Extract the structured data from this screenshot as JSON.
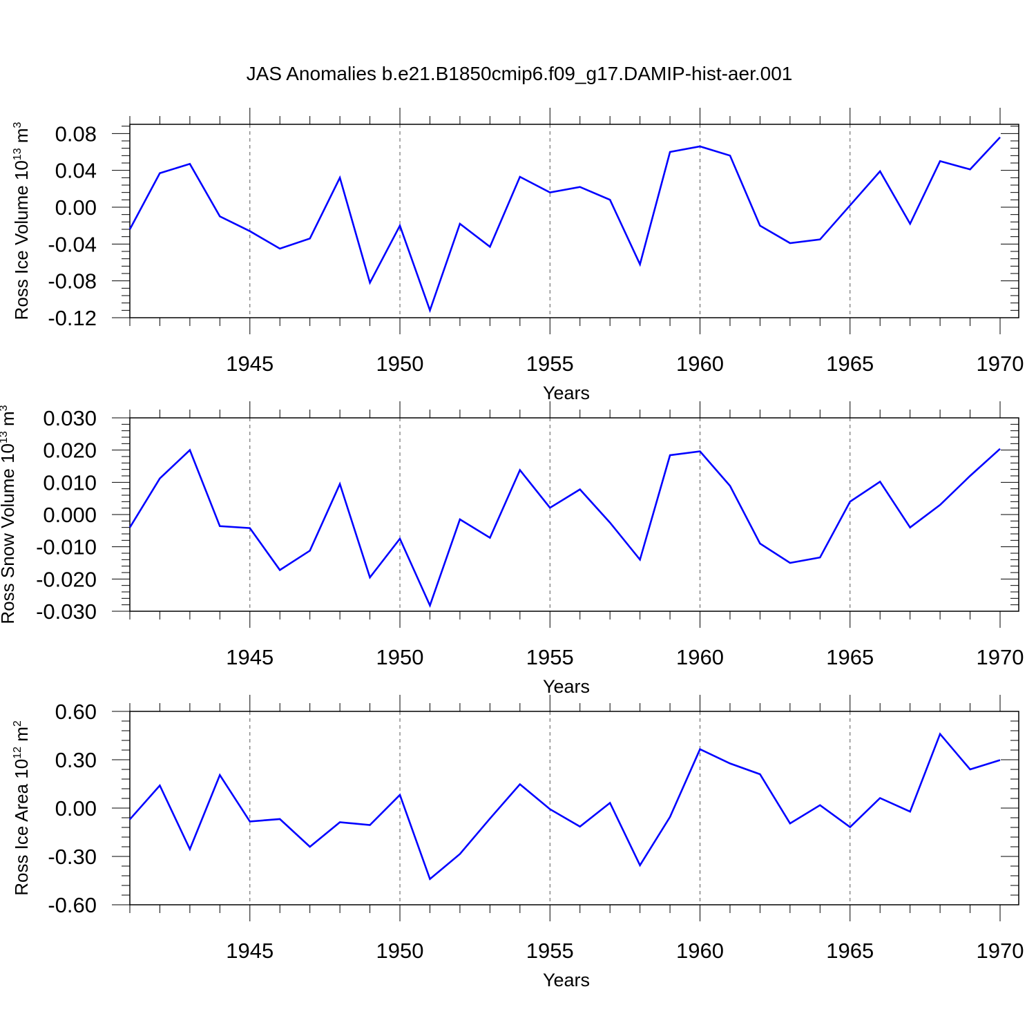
{
  "title": "JAS Anomalies b.e21.B1850cmip6.f09_g17.DAMIP-hist-aer.001",
  "line_color": "#0000ff",
  "chart_data": [
    {
      "type": "line",
      "title": "JAS Anomalies b.e21.B1850cmip6.f09_g17.DAMIP-hist-aer.001",
      "xlabel": "Years",
      "ylabel": "Ross Ice Volume 10",
      "ylabel_exp": "13",
      "ylabel_unit": " m",
      "ylabel_unit_exp": "3",
      "xlim": [
        1941,
        1970
      ],
      "ylim": [
        -0.12,
        0.09
      ],
      "xticks": [
        1945,
        1950,
        1955,
        1960,
        1965,
        1970
      ],
      "yticks": [
        -0.12,
        -0.08,
        -0.04,
        0.0,
        0.04,
        0.08
      ],
      "ytick_labels": [
        "-0.12",
        "-0.08",
        "-0.04",
        "0.00",
        "0.04",
        "0.08"
      ],
      "x": [
        1941,
        1942,
        1943,
        1944,
        1945,
        1946,
        1947,
        1948,
        1949,
        1950,
        1951,
        1952,
        1953,
        1954,
        1955,
        1956,
        1957,
        1958,
        1959,
        1960,
        1961,
        1962,
        1963,
        1964,
        1965,
        1966,
        1967,
        1968,
        1969,
        1970
      ],
      "y": [
        -0.024,
        0.037,
        0.047,
        -0.01,
        -0.026,
        -0.045,
        -0.034,
        0.032,
        -0.082,
        -0.02,
        -0.112,
        -0.018,
        -0.043,
        0.033,
        0.016,
        0.022,
        0.008,
        -0.062,
        0.06,
        0.066,
        0.056,
        -0.02,
        -0.039,
        -0.035,
        0.002,
        0.039,
        -0.018,
        0.05,
        0.041,
        0.076
      ]
    },
    {
      "type": "line",
      "xlabel": "Years",
      "ylabel": "Ross Snow Volume 10",
      "ylabel_exp": "13",
      "ylabel_unit": " m",
      "ylabel_unit_exp": "3",
      "xlim": [
        1941,
        1970
      ],
      "ylim": [
        -0.03,
        0.03
      ],
      "xticks": [
        1945,
        1950,
        1955,
        1960,
        1965,
        1970
      ],
      "yticks": [
        -0.03,
        -0.02,
        -0.01,
        0.0,
        0.01,
        0.02,
        0.03
      ],
      "ytick_labels": [
        "-0.030",
        "-0.020",
        "-0.010",
        "0.000",
        "0.010",
        "0.020",
        "0.030"
      ],
      "x": [
        1941,
        1942,
        1943,
        1944,
        1945,
        1946,
        1947,
        1948,
        1949,
        1950,
        1951,
        1952,
        1953,
        1954,
        1955,
        1956,
        1957,
        1958,
        1959,
        1960,
        1961,
        1962,
        1963,
        1964,
        1965,
        1966,
        1967,
        1968,
        1969,
        1970
      ],
      "y": [
        -0.004,
        0.0112,
        0.02,
        -0.0036,
        -0.0042,
        -0.0172,
        -0.0112,
        0.0095,
        -0.0195,
        -0.0075,
        -0.0282,
        -0.0015,
        -0.0072,
        0.0138,
        0.0021,
        0.0078,
        -0.0025,
        -0.014,
        0.0184,
        0.0196,
        0.0089,
        -0.009,
        -0.015,
        -0.0133,
        0.004,
        0.0102,
        -0.004,
        0.003,
        0.012,
        0.0204
      ]
    },
    {
      "type": "line",
      "xlabel": "Years",
      "ylabel": "Ross Ice Area 10",
      "ylabel_exp": "12",
      "ylabel_unit": " m",
      "ylabel_unit_exp": "2",
      "xlim": [
        1941,
        1970
      ],
      "ylim": [
        -0.6,
        0.6
      ],
      "xticks": [
        1945,
        1950,
        1955,
        1960,
        1965,
        1970
      ],
      "yticks": [
        -0.6,
        -0.3,
        0.0,
        0.3,
        0.6
      ],
      "ytick_labels": [
        "-0.60",
        "-0.30",
        "0.00",
        "0.30",
        "0.60"
      ],
      "x": [
        1941,
        1942,
        1943,
        1944,
        1945,
        1946,
        1947,
        1948,
        1949,
        1950,
        1951,
        1952,
        1953,
        1954,
        1955,
        1956,
        1957,
        1958,
        1959,
        1960,
        1961,
        1962,
        1963,
        1964,
        1965,
        1966,
        1967,
        1968,
        1969,
        1970
      ],
      "y": [
        -0.07,
        0.14,
        -0.255,
        0.205,
        -0.083,
        -0.068,
        -0.24,
        -0.088,
        -0.105,
        0.082,
        -0.44,
        -0.285,
        -0.065,
        0.148,
        -0.007,
        -0.115,
        0.032,
        -0.355,
        -0.055,
        0.365,
        0.277,
        0.21,
        -0.095,
        0.018,
        -0.118,
        0.062,
        -0.022,
        0.46,
        0.24,
        0.298
      ]
    }
  ]
}
